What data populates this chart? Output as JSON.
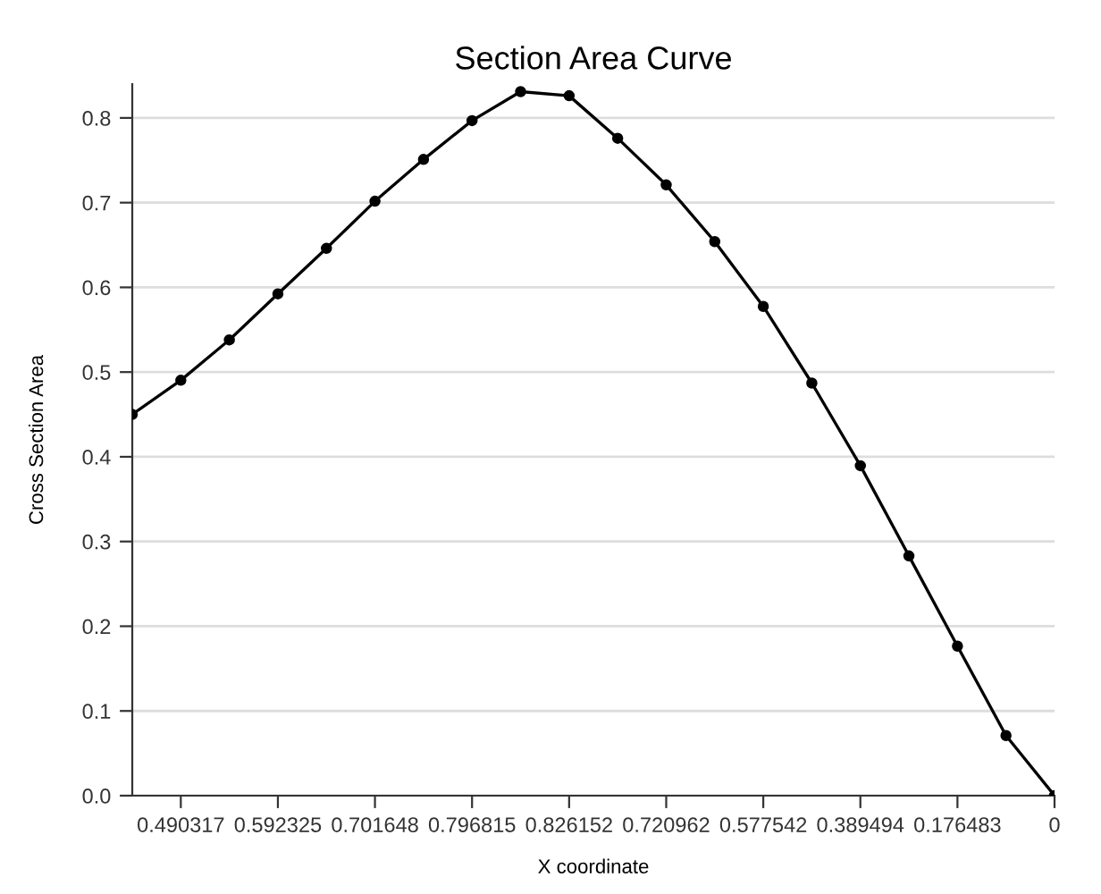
{
  "chart_data": {
    "type": "line",
    "title": "Section Area Curve",
    "xlabel": "X coordinate",
    "ylabel": "Cross Section Area",
    "categories": [
      null,
      "0.490317",
      null,
      "0.592325",
      null,
      "0.701648",
      null,
      "0.796815",
      null,
      "0.826152",
      null,
      "0.720962",
      null,
      "0.577542",
      null,
      "0.389494",
      null,
      "0.176483",
      null,
      "0"
    ],
    "series": [
      {
        "color": "#000000",
        "values": [
          0.45,
          0.490317,
          0.538,
          0.592325,
          0.646,
          0.701648,
          0.751,
          0.796815,
          0.831,
          0.826152,
          0.776,
          0.720962,
          0.654,
          0.577542,
          0.487,
          0.389494,
          0.283,
          0.176483,
          0.071,
          0
        ]
      }
    ],
    "ylim": [
      0,
      0.84
    ],
    "yticks": [
      {
        "value": 0,
        "label": "0.0"
      },
      0.1,
      0.2,
      0.3,
      0.4,
      0.5,
      0.6,
      0.7,
      0.8
    ],
    "grid": "y",
    "marker": "circle",
    "line_style": "solid",
    "legend": false
  }
}
